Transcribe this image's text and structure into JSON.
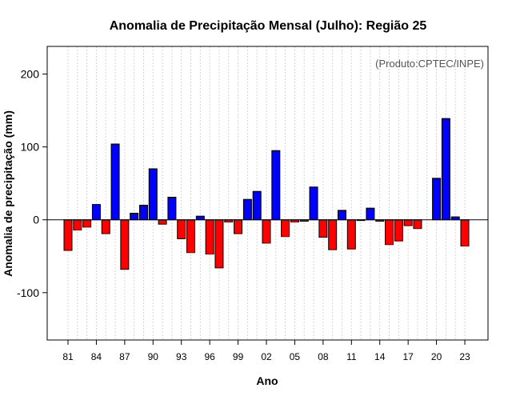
{
  "chart_data": {
    "type": "bar",
    "title": "Anomalia de Precipitação Mensal (Julho): Região 25",
    "xlabel": "Ano",
    "ylabel": "Anomalia de precipitação (mm)",
    "annotation": "(Produto:CPTEC/INPE)",
    "ylim": [
      -165,
      238
    ],
    "yticks": [
      -100,
      0,
      100,
      200
    ],
    "yticks_labels": [
      "-100",
      "0",
      "100",
      "200"
    ],
    "xtick_years": [
      1981,
      1984,
      1987,
      1990,
      1993,
      1996,
      1999,
      2002,
      2005,
      2008,
      2011,
      2014,
      2017,
      2020,
      2023
    ],
    "xtick_labels": [
      "81",
      "84",
      "87",
      "90",
      "93",
      "96",
      "99",
      "02",
      "05",
      "08",
      "11",
      "14",
      "17",
      "20",
      "23"
    ],
    "years": [
      1981,
      1982,
      1983,
      1984,
      1985,
      1986,
      1987,
      1988,
      1989,
      1990,
      1991,
      1992,
      1993,
      1994,
      1995,
      1996,
      1997,
      1998,
      1999,
      2000,
      2001,
      2002,
      2003,
      2004,
      2005,
      2006,
      2007,
      2008,
      2009,
      2010,
      2011,
      2012,
      2013,
      2014,
      2015,
      2016,
      2017,
      2018,
      2019,
      2020,
      2021,
      2022,
      2023
    ],
    "values": [
      -42,
      -14,
      -10,
      21,
      -19,
      104,
      -68,
      9,
      20,
      70,
      -6,
      31,
      -26,
      -45,
      5,
      -47,
      -66,
      -3,
      -19,
      28,
      39,
      -32,
      95,
      -23,
      -3,
      -2,
      45,
      -24,
      -41,
      13,
      -40,
      -1,
      16,
      -2,
      -34,
      -29,
      -8,
      -12,
      0,
      57,
      139,
      4,
      -36
    ],
    "positive_color": "#0000ff",
    "negative_color": "#ff0000",
    "grid": true
  }
}
